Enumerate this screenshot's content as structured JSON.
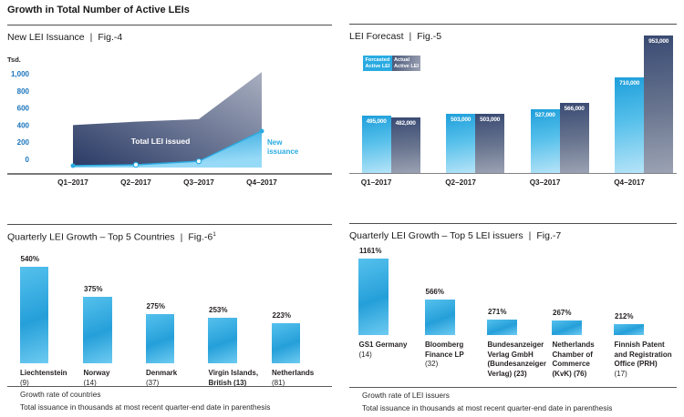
{
  "header": {
    "title": "Growth in Total Number of Active LEIs"
  },
  "colors": {
    "accent_light_blue": "#29ABE2",
    "tick_blue": "#1B75BC",
    "navy": "#2B3B66",
    "slate": "#9BA2B6",
    "text": "#231F20"
  },
  "panels": {
    "fig4": {
      "title": "New LEI Issuance",
      "sep": "|",
      "fig": "Fig.-4",
      "y_unit": "Tsd.",
      "y_tick_labels": [
        "1,000",
        "800",
        "600",
        "400",
        "200",
        "0"
      ]
    },
    "fig5": {
      "title": "LEI Forecast",
      "sep": "|",
      "fig": "Fig.-5",
      "legend": [
        {
          "line1": "Forcasted",
          "line2": "Active LEI"
        },
        {
          "line1": "Actual",
          "line2": "Active  LEI"
        }
      ]
    },
    "fig6": {
      "title": "Quarterly LEI Growth – Top 5 Countries",
      "sep": "|",
      "fig": "Fig.-6",
      "fig_sup": "1",
      "bar_labels": [
        {
          "lines": [
            {
              "t": "Liechtenstein",
              "b": true
            },
            {
              "t": "(9)",
              "b": false
            }
          ]
        },
        {
          "lines": [
            {
              "t": "Norway",
              "b": true
            },
            {
              "t": "(14)",
              "b": false
            }
          ]
        },
        {
          "lines": [
            {
              "t": "Denmark",
              "b": true
            },
            {
              "t": "(37)",
              "b": false
            }
          ]
        },
        {
          "lines": [
            {
              "t": "Virgin Islands,",
              "b": true
            },
            {
              "t": "British (13)",
              "b": true
            }
          ]
        },
        {
          "lines": [
            {
              "t": "Netherlands",
              "b": true
            },
            {
              "t": "(81)",
              "b": false
            }
          ]
        }
      ],
      "footnote1": "Growth rate of countries",
      "footnote2": "Total issuance in thousands at most recent quarter-end date in parenthesis"
    },
    "fig7": {
      "title": "Quarterly LEI Growth – Top 5 LEI issuers",
      "sep": "|",
      "fig": "Fig.-7",
      "bar_labels": [
        {
          "lines": [
            {
              "t": "GS1 Germany",
              "b": true
            },
            {
              "t": "(14)",
              "b": false
            }
          ]
        },
        {
          "lines": [
            {
              "t": "Bloomberg",
              "b": true
            },
            {
              "t": "Finance LP",
              "b": true
            },
            {
              "t": "(32)",
              "b": false
            }
          ]
        },
        {
          "lines": [
            {
              "t": "Bundesanzeiger",
              "b": true
            },
            {
              "t": "Verlag GmbH",
              "b": true
            },
            {
              "t": "(Bundesanzeiger",
              "b": true
            },
            {
              "t": "Verlag) (23)",
              "b": true
            }
          ]
        },
        {
          "lines": [
            {
              "t": "Netherlands",
              "b": true
            },
            {
              "t": "Chamber of",
              "b": true
            },
            {
              "t": "Commerce",
              "b": true
            },
            {
              "t": "(KvK) (76)",
              "b": true
            }
          ]
        },
        {
          "lines": [
            {
              "t": "Finnish Patent",
              "b": true
            },
            {
              "t": "and Registration",
              "b": true
            },
            {
              "t": "Office (PRH)",
              "b": true
            },
            {
              "t": "(17)",
              "b": false
            }
          ]
        }
      ],
      "footnote1": "Growth rate of LEI issuers",
      "footnote2": "Total issuance in thousands at most recent quarter-end date in parenthesis"
    }
  },
  "chart_data": [
    {
      "id": "fig4",
      "type": "area",
      "title": "New LEI Issuance (Fig.-4)",
      "x": [
        "Q1–2017",
        "Q2–2017",
        "Q3–2017",
        "Q4–2017"
      ],
      "ylabel": "Tsd.",
      "ylim": [
        0,
        1000
      ],
      "yticks": [
        0,
        200,
        400,
        600,
        800,
        1000
      ],
      "grid": false,
      "series": [
        {
          "name": "Total LEI issued",
          "values": [
            400,
            440,
            470,
            1020
          ]
        },
        {
          "name": "New issuance",
          "values": [
            0,
            0,
            20,
            330
          ]
        }
      ]
    },
    {
      "id": "fig5",
      "type": "bar",
      "title": "LEI Forecast (Fig.-5)",
      "categories": [
        "Q1–2017",
        "Q2–2017",
        "Q3–2017",
        "Q4–2017"
      ],
      "legend_position": "top-left",
      "series": [
        {
          "name": "Forcasted Active LEI",
          "values": [
            495000,
            503000,
            527000,
            710000
          ],
          "labels": [
            "495,000",
            "503,000",
            "527,000",
            "710,000"
          ]
        },
        {
          "name": "Actual Active LEI",
          "values": [
            482000,
            503000,
            566000,
            953000
          ],
          "labels": [
            "482,000",
            "503,000",
            "566,000",
            "953,000"
          ]
        }
      ]
    },
    {
      "id": "fig6",
      "type": "bar",
      "title": "Quarterly LEI Growth – Top 5 Countries (Fig.-6)",
      "categories": [
        "Liechtenstein (9)",
        "Norway (14)",
        "Denmark (37)",
        "Virgin Islands, British (13)",
        "Netherlands (81)"
      ],
      "values": [
        540,
        375,
        275,
        253,
        223
      ],
      "value_labels": [
        "540%",
        "375%",
        "275%",
        "253%",
        "223%"
      ]
    },
    {
      "id": "fig7",
      "type": "bar",
      "title": "Quarterly LEI Growth – Top 5 LEI issuers (Fig.-7)",
      "categories": [
        "GS1 Germany (14)",
        "Bloomberg Finance LP (32)",
        "Bundesanzeiger Verlag GmbH (Bundesanzeiger Verlag) (23)",
        "Netherlands Chamber of Commerce (KvK) (76)",
        "Finnish Patent and Registration Office (PRH) (17)"
      ],
      "values": [
        1161,
        566,
        271,
        267,
        212
      ],
      "value_labels": [
        "1161%",
        "566%",
        "271%",
        "267%",
        "212%"
      ]
    }
  ]
}
